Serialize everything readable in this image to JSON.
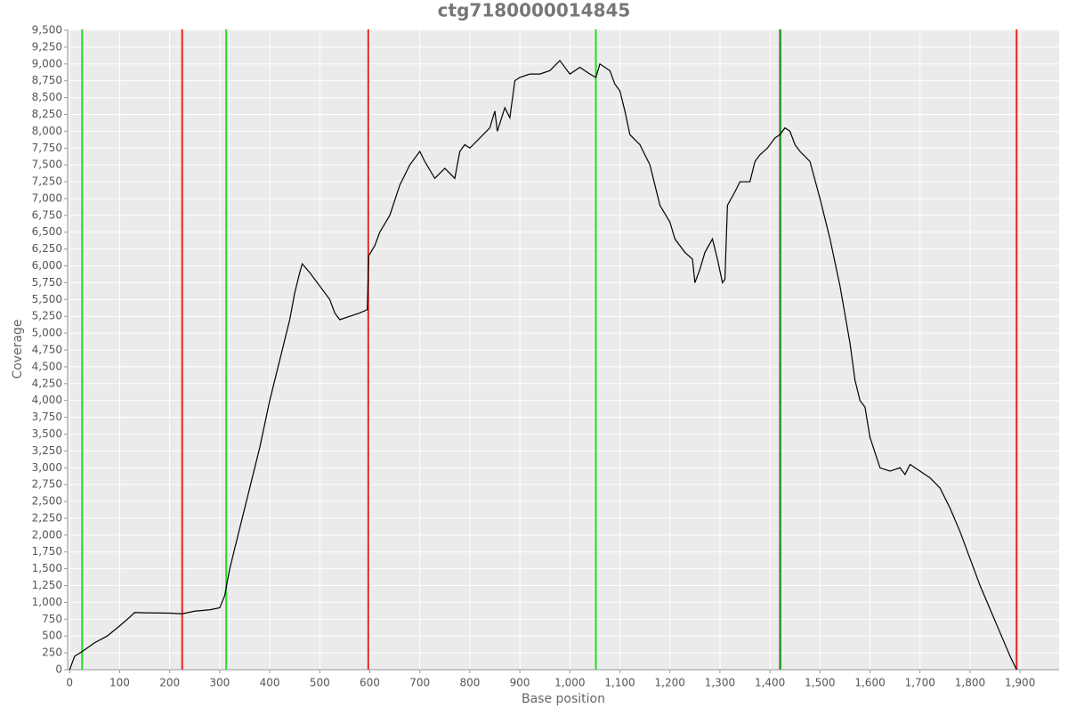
{
  "chart_data": {
    "type": "line",
    "title": "ctg7180000014845",
    "x_label": "Base position",
    "y_label": "Coverage",
    "color": "#000000",
    "grid": true,
    "xlim": [
      -4,
      1978
    ],
    "ylim": [
      0,
      9500
    ],
    "xticks": [
      0,
      100,
      200,
      300,
      400,
      500,
      600,
      700,
      800,
      900,
      {
        "value": 1000,
        "label": "1,000"
      },
      {
        "value": 1100,
        "label": "1,100"
      },
      {
        "value": 1200,
        "label": "1,200"
      },
      {
        "value": 1300,
        "label": "1,300"
      },
      {
        "value": 1400,
        "label": "1,400"
      },
      {
        "value": 1500,
        "label": "1,500"
      },
      {
        "value": 1600,
        "label": "1,600"
      },
      {
        "value": 1700,
        "label": "1,700"
      },
      {
        "value": 1800,
        "label": "1,800"
      },
      {
        "value": 1900,
        "label": "1,900"
      }
    ],
    "yticks": [
      0,
      250,
      500,
      750,
      {
        "value": 1000,
        "label": "1,000"
      },
      {
        "value": 1250,
        "label": "1,250"
      },
      {
        "value": 1500,
        "label": "1,500"
      },
      {
        "value": 1750,
        "label": "1,750"
      },
      {
        "value": 2000,
        "label": "2,000"
      },
      {
        "value": 2250,
        "label": "2,250"
      },
      {
        "value": 2500,
        "label": "2,500"
      },
      {
        "value": 2750,
        "label": "2,750"
      },
      {
        "value": 3000,
        "label": "3,000"
      },
      {
        "value": 3250,
        "label": "3,250"
      },
      {
        "value": 3500,
        "label": "3,500"
      },
      {
        "value": 3750,
        "label": "3,750"
      },
      {
        "value": 4000,
        "label": "4,000"
      },
      {
        "value": 4250,
        "label": "4,250"
      },
      {
        "value": 4500,
        "label": "4,500"
      },
      {
        "value": 4750,
        "label": "4,750"
      },
      {
        "value": 5000,
        "label": "5,000"
      },
      {
        "value": 5250,
        "label": "5,250"
      },
      {
        "value": 5500,
        "label": "5,500"
      },
      {
        "value": 5750,
        "label": "5,750"
      },
      {
        "value": 6000,
        "label": "6,000"
      },
      {
        "value": 6250,
        "label": "6,250"
      },
      {
        "value": 6500,
        "label": "6,500"
      },
      {
        "value": 6750,
        "label": "6,750"
      },
      {
        "value": 7000,
        "label": "7,000"
      },
      {
        "value": 7250,
        "label": "7,250"
      },
      {
        "value": 7500,
        "label": "7,500"
      },
      {
        "value": 7750,
        "label": "7,750"
      },
      {
        "value": 8000,
        "label": "8,000"
      },
      {
        "value": 8250,
        "label": "8,250"
      },
      {
        "value": 8500,
        "label": "8,500"
      },
      {
        "value": 8750,
        "label": "8,750"
      },
      {
        "value": 9000,
        "label": "9,000"
      },
      {
        "value": 9250,
        "label": "9,250"
      },
      {
        "value": 9500,
        "label": "9,500"
      }
    ],
    "markers": [
      {
        "x": 25,
        "color": "#22dd22"
      },
      {
        "x": 225,
        "color": "#ee2222"
      },
      {
        "x": 313,
        "color": "#22dd22"
      },
      {
        "x": 597,
        "color": "#ee2222"
      },
      {
        "x": 1052,
        "color": "#22dd22"
      },
      {
        "x": 1420,
        "color": "#ee2222"
      },
      {
        "x": 1421,
        "color": "#2a9a2a"
      },
      {
        "x": 1893,
        "color": "#ee2222"
      }
    ],
    "x": [
      0,
      5,
      10,
      25,
      50,
      75,
      100,
      120,
      130,
      150,
      200,
      225,
      250,
      280,
      300,
      310,
      320,
      340,
      360,
      380,
      400,
      420,
      440,
      450,
      460,
      465,
      480,
      500,
      520,
      530,
      540,
      560,
      580,
      595,
      598,
      610,
      620,
      640,
      660,
      680,
      700,
      710,
      730,
      750,
      770,
      780,
      790,
      800,
      820,
      840,
      850,
      855,
      870,
      880,
      890,
      900,
      920,
      940,
      960,
      980,
      990,
      1000,
      1020,
      1040,
      1052,
      1060,
      1080,
      1090,
      1100,
      1110,
      1120,
      1140,
      1160,
      1170,
      1180,
      1200,
      1210,
      1230,
      1245,
      1250,
      1260,
      1270,
      1285,
      1295,
      1305,
      1310,
      1315,
      1330,
      1340,
      1360,
      1370,
      1380,
      1395,
      1410,
      1420,
      1430,
      1440,
      1450,
      1460,
      1480,
      1500,
      1520,
      1540,
      1560,
      1570,
      1580,
      1590,
      1600,
      1620,
      1640,
      1660,
      1670,
      1680,
      1700,
      1720,
      1740,
      1760,
      1780,
      1800,
      1820,
      1840,
      1860,
      1880,
      1893
    ],
    "values": [
      0,
      100,
      200,
      270,
      400,
      500,
      650,
      780,
      850,
      845,
      840,
      830,
      870,
      890,
      920,
      1100,
      1500,
      2100,
      2700,
      3300,
      4000,
      4600,
      5200,
      5600,
      5900,
      6030,
      5900,
      5700,
      5500,
      5300,
      5200,
      5250,
      5300,
      5350,
      6150,
      6300,
      6500,
      6750,
      7200,
      7500,
      7700,
      7550,
      7300,
      7450,
      7300,
      7700,
      7800,
      7750,
      7900,
      8050,
      8300,
      8000,
      8350,
      8200,
      8750,
      8800,
      8850,
      8850,
      8900,
      9050,
      8950,
      8850,
      8950,
      8850,
      8800,
      9000,
      8900,
      8700,
      8600,
      8300,
      7950,
      7800,
      7500,
      7200,
      6900,
      6650,
      6400,
      6200,
      6100,
      5750,
      5950,
      6200,
      6400,
      6100,
      5750,
      5800,
      6900,
      7100,
      7250,
      7250,
      7550,
      7650,
      7750,
      7900,
      7950,
      8050,
      8000,
      7800,
      7700,
      7550,
      7000,
      6400,
      5700,
      4850,
      4300,
      4000,
      3900,
      3450,
      3000,
      2950,
      3000,
      2900,
      3050,
      2950,
      2850,
      2700,
      2400,
      2050,
      1650,
      1250,
      900,
      550,
      200,
      0
    ]
  }
}
